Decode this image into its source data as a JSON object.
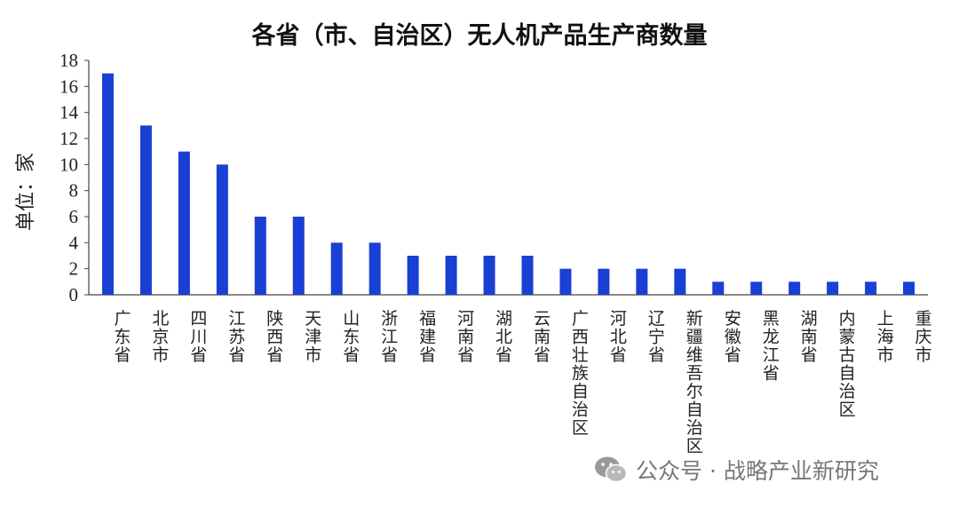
{
  "chart_data": {
    "type": "bar",
    "title": "各省（市、自治区）无人机产品生产商数量",
    "ylabel": "单位：家",
    "xlabel": "",
    "categories": [
      "广东省",
      "北京市",
      "四川省",
      "江苏省",
      "陕西省",
      "天津市",
      "山东省",
      "浙江省",
      "福建省",
      "河南省",
      "湖北省",
      "云南省",
      "广西壮族自治区",
      "河北省",
      "辽宁省",
      "新疆维吾尔自治区",
      "安徽省",
      "黑龙江省",
      "湖南省",
      "内蒙古自治区",
      "上海市",
      "重庆市"
    ],
    "values": [
      17,
      13,
      11,
      10,
      6,
      6,
      4,
      4,
      3,
      3,
      3,
      3,
      2,
      2,
      2,
      2,
      1,
      1,
      1,
      1,
      1,
      1
    ],
    "ylim": [
      0,
      18
    ],
    "yticks": [
      0,
      2,
      4,
      6,
      8,
      10,
      12,
      14,
      16,
      18
    ],
    "grid": false,
    "legend": "none",
    "bar_color": "#1a3fd4"
  },
  "watermark": {
    "icon": "wechat-icon",
    "text": "公众号 · 战略产业新研究"
  }
}
